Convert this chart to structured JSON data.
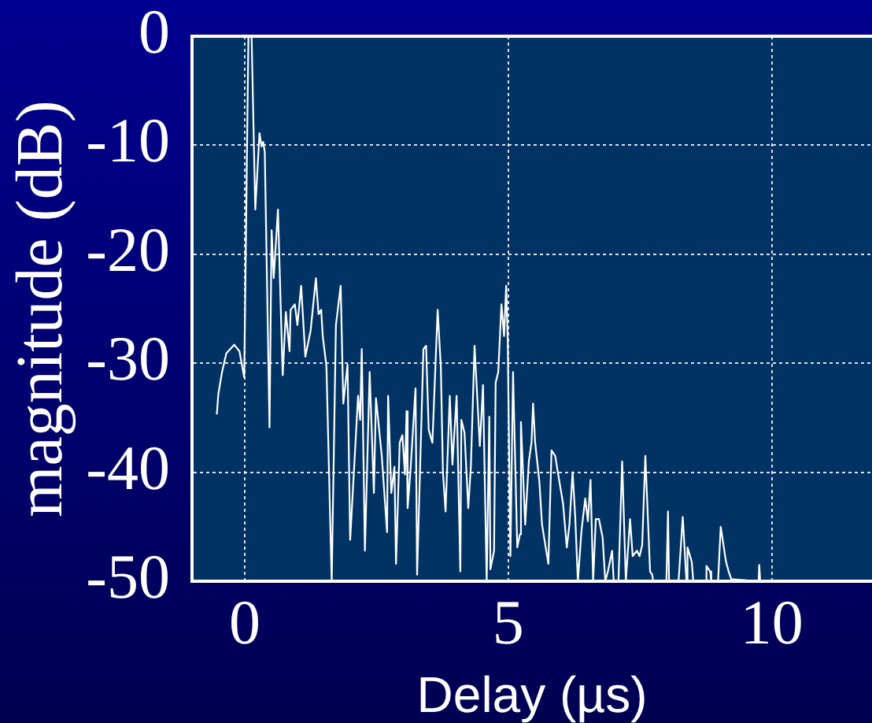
{
  "chart_data": {
    "type": "line",
    "xlabel": "Delay (µs)",
    "ylabel": "magnitude (dB)",
    "x": [
      -0.53,
      -0.5,
      -0.43,
      -0.35,
      -0.2,
      -0.1,
      -0.01,
      0.07,
      0.13,
      0.2,
      0.28,
      0.32,
      0.35,
      0.38,
      0.47,
      0.51,
      0.55,
      0.63,
      0.72,
      0.78,
      0.85,
      0.87,
      0.95,
      1.0,
      1.07,
      1.15,
      1.25,
      1.35,
      1.4,
      1.45,
      1.48,
      1.55,
      1.65,
      1.73,
      1.82,
      1.87,
      1.95,
      2.0,
      2.15,
      2.19,
      2.22,
      2.28,
      2.37,
      2.45,
      2.49,
      2.6,
      2.7,
      2.72,
      2.78,
      2.84,
      2.87,
      2.94,
      2.99,
      3.04,
      3.07,
      3.09,
      3.14,
      3.24,
      3.27,
      3.39,
      3.44,
      3.49,
      3.56,
      3.66,
      3.72,
      3.76,
      3.81,
      3.89,
      3.94,
      4.02,
      4.09,
      4.11,
      4.17,
      4.24,
      4.29,
      4.36,
      4.46,
      4.52,
      4.59,
      4.64,
      4.66,
      4.73,
      4.76,
      4.81,
      4.87,
      4.92,
      4.96,
      4.99,
      5.04,
      5.09,
      5.17,
      5.22,
      5.24,
      5.32,
      5.39,
      5.44,
      5.47,
      5.51,
      5.59,
      5.64,
      5.76,
      5.82,
      5.89,
      5.94,
      6.04,
      6.11,
      6.16,
      6.22,
      6.27,
      6.32,
      6.39,
      6.46,
      6.51,
      6.56,
      6.61,
      6.66,
      6.72,
      6.79,
      6.84,
      6.89,
      6.97,
      7.0,
      7.09,
      7.16,
      7.23,
      7.31,
      7.36,
      7.44,
      7.49,
      7.54,
      7.6,
      7.69,
      7.73,
      7.75,
      8.0,
      8.03,
      8.05,
      8.23,
      8.31,
      8.38,
      8.4,
      8.48,
      8.51,
      8.74,
      8.76,
      8.83,
      8.85,
      8.98,
      9.03,
      9.13,
      9.18,
      9.23,
      9.75,
      9.76,
      9.78
    ],
    "series": [
      {
        "color": "#ffffff",
        "values": [
          -34.7,
          -32.8,
          -30.8,
          -29.1,
          -28.3,
          -28.9,
          -31.3,
          0,
          0,
          -15.9,
          -8.9,
          -10.1,
          -9.7,
          -10.6,
          -35.9,
          -17.8,
          -22.2,
          -15.9,
          -31.1,
          -25.3,
          -28.9,
          -25.1,
          -24.6,
          -26.5,
          -22.9,
          -29.4,
          -27.0,
          -22.2,
          -25.5,
          -25.1,
          -27.5,
          -30.3,
          -50,
          -26.5,
          -22.9,
          -33.7,
          -30.1,
          -46.2,
          -33.0,
          -35.2,
          -28.7,
          -47.2,
          -30.8,
          -41.9,
          -33.2,
          -38.5,
          -45.5,
          -33.0,
          -41.9,
          -39.5,
          -48.4,
          -37.3,
          -36.6,
          -40.2,
          -34.4,
          -43.3,
          -40.2,
          -32.3,
          -49.4,
          -28.7,
          -28.4,
          -36.1,
          -37.3,
          -25.1,
          -30.3,
          -40.0,
          -43.6,
          -33.0,
          -39.3,
          -33.0,
          -49.1,
          -35.2,
          -36.4,
          -43.3,
          -39.5,
          -28.4,
          -37.6,
          -32.0,
          -50,
          -34.9,
          -48.9,
          -47.2,
          -31.8,
          -30.8,
          -24.6,
          -27.5,
          -22.9,
          -28.0,
          -47.7,
          -30.8,
          -46.9,
          -45.7,
          -35.4,
          -44.8,
          -39.0,
          -37.3,
          -33.7,
          -37.3,
          -40.9,
          -44.8,
          -48.4,
          -38.0,
          -38.5,
          -40.0,
          -42.9,
          -46.9,
          -44.8,
          -40.0,
          -44.1,
          -50,
          -45.3,
          -42.4,
          -44.5,
          -40.7,
          -50,
          -44.3,
          -44.3,
          -46.0,
          -50,
          -49.1,
          -47.2,
          -50,
          -50,
          -39.0,
          -50,
          -44.3,
          -47.7,
          -47.2,
          -47.7,
          -46.7,
          -38.5,
          -49.1,
          -49.4,
          -50,
          -50,
          -43.6,
          -50,
          -50,
          -44.1,
          -50,
          -46.9,
          -48.2,
          -50,
          -50,
          -48.6,
          -49.1,
          -50,
          -50,
          -45.0,
          -48.2,
          -49.1,
          -49.8,
          -50,
          -48.5,
          -50
        ]
      }
    ],
    "xlim": [
      -1,
      11.9
    ],
    "ylim": [
      -50,
      0
    ],
    "xticks": [
      0,
      5,
      10
    ],
    "yticks": [
      -50,
      -40,
      -30,
      -20,
      -10,
      0
    ],
    "grid": true
  }
}
